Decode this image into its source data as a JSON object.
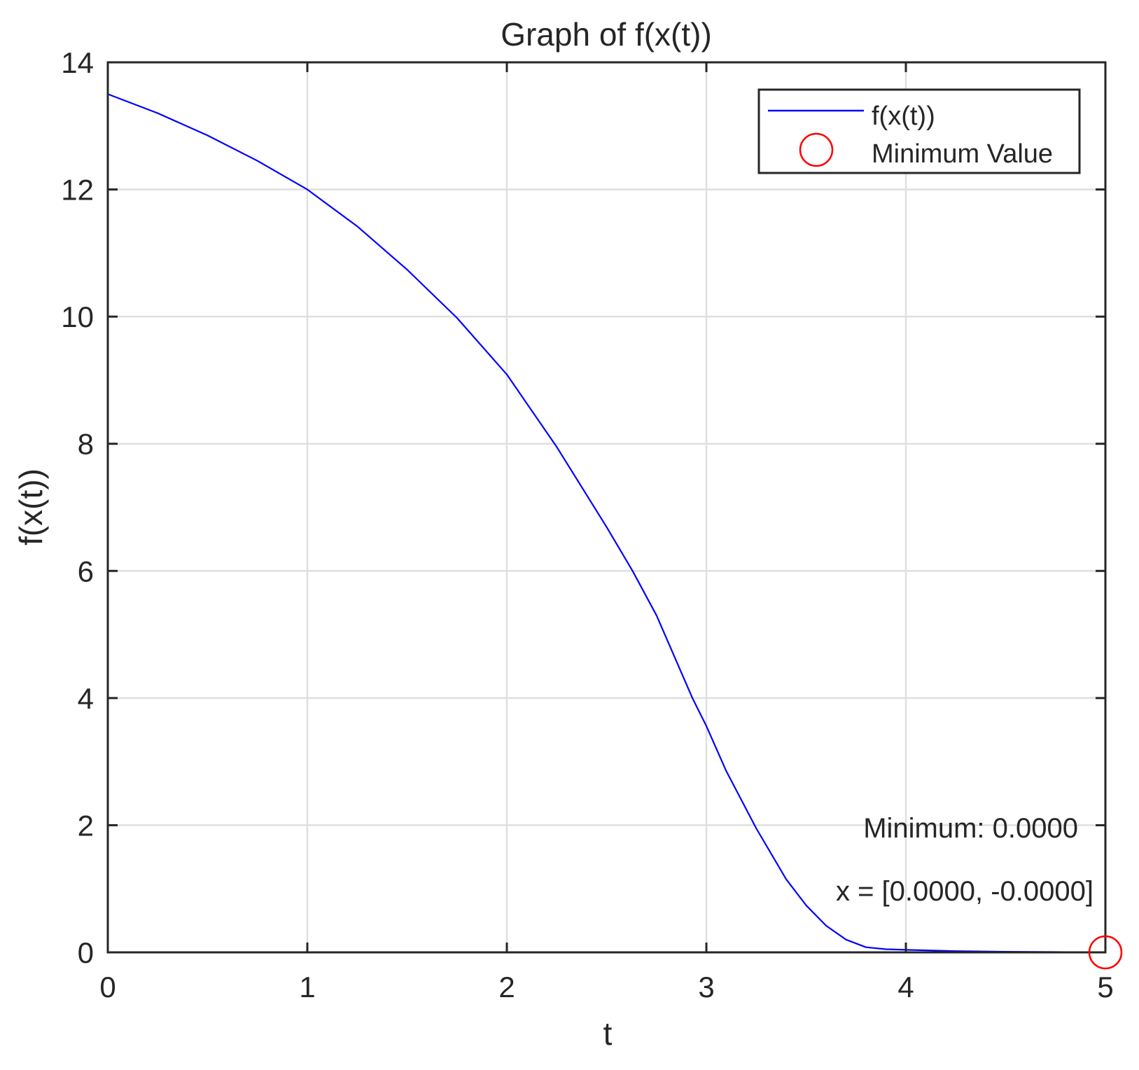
{
  "chart_data": {
    "type": "line",
    "title": "Graph of f(x(t))",
    "xlabel": "t",
    "ylabel": "f(x(t))",
    "xlim": [
      0,
      5
    ],
    "ylim": [
      0,
      14
    ],
    "xticks": [
      0,
      1,
      2,
      3,
      4,
      5
    ],
    "yticks": [
      0,
      2,
      4,
      6,
      8,
      10,
      12,
      14
    ],
    "grid": true,
    "legend_position": "northeast",
    "series": [
      {
        "name": "f(x(t))",
        "type": "line",
        "color": "#0000ff",
        "x": [
          0,
          0.25,
          0.5,
          0.75,
          1.0,
          1.25,
          1.5,
          1.75,
          2.0,
          2.25,
          2.5,
          2.63,
          2.75,
          2.93,
          3.0,
          3.1,
          3.25,
          3.4,
          3.5,
          3.6,
          3.7,
          3.8,
          3.9,
          4.0,
          4.25,
          4.5,
          4.75,
          5.0
        ],
        "y": [
          13.5,
          13.2,
          12.85,
          12.45,
          12.0,
          11.42,
          10.74,
          9.98,
          9.09,
          7.95,
          6.69,
          6.0,
          5.3,
          4.0,
          3.56,
          2.85,
          1.95,
          1.15,
          0.74,
          0.42,
          0.2,
          0.08,
          0.05,
          0.04,
          0.02,
          0.01,
          0.005,
          0.0
        ]
      },
      {
        "name": "Minimum Value",
        "type": "scatter",
        "marker": "circle",
        "color": "#ff0000",
        "x": [
          5
        ],
        "y": [
          0
        ]
      }
    ],
    "annotations": [
      {
        "text": "Minimum: 0.0000",
        "x": 5,
        "y": 2
      },
      {
        "text": "x = [0.0000, -0.0000]",
        "x": 5,
        "y": 0.9
      }
    ]
  },
  "figure": {
    "title": "Graph of f(x(t))",
    "xlabel": "t",
    "ylabel": "f(x(t))",
    "legend": {
      "items": [
        {
          "label": "f(x(t))",
          "icon": "blue-line-icon"
        },
        {
          "label": "Minimum Value",
          "icon": "red-circle-icon"
        }
      ]
    },
    "annotation_min": "Minimum: 0.0000",
    "annotation_x": "x = [0.0000, -0.0000]",
    "colors": {
      "line": "#0000ff",
      "marker": "#ff0000",
      "axis": "#262626",
      "grid": "#dfdfdf"
    }
  }
}
